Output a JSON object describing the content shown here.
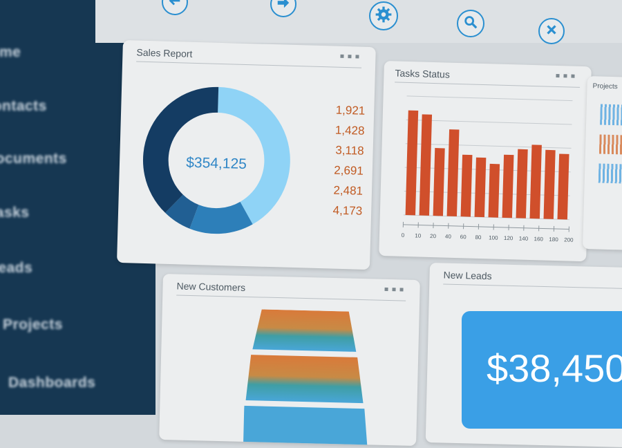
{
  "sidebar": {
    "items": [
      {
        "label": "Home"
      },
      {
        "label": "Contacts"
      },
      {
        "label": "Documents"
      },
      {
        "label": "Tasks"
      },
      {
        "label": "Leads"
      },
      {
        "label": "Projects"
      },
      {
        "label": "Dashboards"
      }
    ]
  },
  "toolbar": {
    "buttons": [
      {
        "icon": "back-arrow-icon"
      },
      {
        "icon": "forward-arrow-icon"
      },
      {
        "icon": "gear-icon"
      },
      {
        "icon": "search-icon"
      },
      {
        "icon": "close-icon"
      }
    ],
    "accent_color": "#2a8fd0"
  },
  "sales_report": {
    "title": "Sales Report",
    "total": "$354,125",
    "values": [
      "1,921",
      "1,428",
      "3,118",
      "2,691",
      "2,481",
      "4,173"
    ],
    "segment_colors": [
      "#8fd3f6",
      "#2d7fb9",
      "#215f93",
      "#143c63"
    ]
  },
  "tasks_status": {
    "title": "Tasks Status",
    "chart_data": {
      "type": "bar",
      "x": [
        "0",
        "10",
        "20",
        "40",
        "60",
        "80",
        "100",
        "120",
        "140",
        "160",
        "180",
        "200"
      ],
      "values": [
        88,
        85,
        57,
        73,
        52,
        50,
        45,
        53,
        58,
        62,
        58,
        55
      ],
      "ylim": [
        0,
        100
      ],
      "bar_color": "#d04f2b",
      "grid": true
    }
  },
  "projects": {
    "title": "Projects"
  },
  "new_customers": {
    "title": "New Customers",
    "colors": [
      "#d97a3a",
      "#3fa0d3"
    ]
  },
  "new_leads": {
    "title": "New Leads",
    "value": "$38,450",
    "accent_color": "#3a9fe6"
  }
}
